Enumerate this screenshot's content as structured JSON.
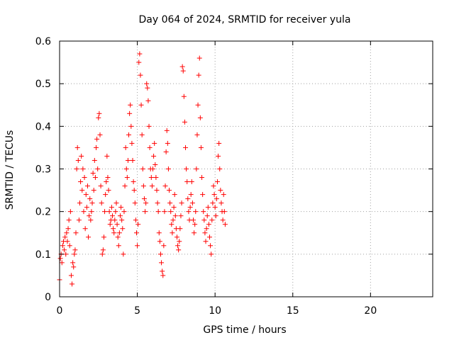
{
  "chart_data": {
    "type": "scatter",
    "title": "Day 064 of 2024, SRMTID for receiver yula",
    "xlabel": "GPS time / hours",
    "ylabel": "SRMTID / TECUs",
    "xlim": [
      0,
      24
    ],
    "ylim": [
      0,
      0.6
    ],
    "x_ticks": [
      0,
      5,
      10,
      15,
      20
    ],
    "y_ticks": [
      0,
      0.1,
      0.2,
      0.3,
      0.4,
      0.5,
      0.6
    ],
    "x_tick_labels": [
      "0",
      "5",
      "10",
      "15",
      "20"
    ],
    "y_tick_labels": [
      "0",
      "0.1",
      "0.2",
      "0.3",
      "0.4",
      "0.5",
      "0.6"
    ],
    "grid": true,
    "marker": "+",
    "color": "#ff0000",
    "series": [
      {
        "name": "SRMTID",
        "points": [
          [
            0.0,
            0.04
          ],
          [
            0.05,
            0.09
          ],
          [
            0.1,
            0.1
          ],
          [
            0.15,
            0.08
          ],
          [
            0.2,
            0.12
          ],
          [
            0.25,
            0.13
          ],
          [
            0.3,
            0.11
          ],
          [
            0.35,
            0.14
          ],
          [
            0.4,
            0.1
          ],
          [
            0.45,
            0.15
          ],
          [
            0.5,
            0.13
          ],
          [
            0.55,
            0.16
          ],
          [
            0.6,
            0.18
          ],
          [
            0.65,
            0.12
          ],
          [
            0.7,
            0.2
          ],
          [
            0.75,
            0.05
          ],
          [
            0.8,
            0.03
          ],
          [
            0.85,
            0.08
          ],
          [
            0.9,
            0.07
          ],
          [
            0.95,
            0.1
          ],
          [
            1.0,
            0.11
          ],
          [
            1.05,
            0.15
          ],
          [
            1.1,
            0.3
          ],
          [
            1.15,
            0.35
          ],
          [
            1.2,
            0.32
          ],
          [
            1.25,
            0.18
          ],
          [
            1.3,
            0.22
          ],
          [
            1.35,
            0.27
          ],
          [
            1.4,
            0.33
          ],
          [
            1.45,
            0.25
          ],
          [
            1.5,
            0.3
          ],
          [
            1.55,
            0.2
          ],
          [
            1.6,
            0.28
          ],
          [
            1.65,
            0.16
          ],
          [
            1.7,
            0.24
          ],
          [
            1.75,
            0.21
          ],
          [
            1.8,
            0.26
          ],
          [
            1.85,
            0.14
          ],
          [
            1.9,
            0.19
          ],
          [
            1.95,
            0.23
          ],
          [
            2.0,
            0.18
          ],
          [
            2.05,
            0.2
          ],
          [
            2.1,
            0.22
          ],
          [
            2.15,
            0.29
          ],
          [
            2.2,
            0.25
          ],
          [
            2.25,
            0.32
          ],
          [
            2.3,
            0.28
          ],
          [
            2.35,
            0.35
          ],
          [
            2.4,
            0.37
          ],
          [
            2.45,
            0.3
          ],
          [
            2.5,
            0.42
          ],
          [
            2.55,
            0.43
          ],
          [
            2.6,
            0.38
          ],
          [
            2.65,
            0.26
          ],
          [
            2.7,
            0.22
          ],
          [
            2.75,
            0.1
          ],
          [
            2.8,
            0.11
          ],
          [
            2.85,
            0.14
          ],
          [
            2.9,
            0.2
          ],
          [
            2.95,
            0.24
          ],
          [
            3.0,
            0.27
          ],
          [
            3.05,
            0.33
          ],
          [
            3.1,
            0.28
          ],
          [
            3.15,
            0.25
          ],
          [
            3.2,
            0.2
          ],
          [
            3.25,
            0.17
          ],
          [
            3.3,
            0.18
          ],
          [
            3.35,
            0.21
          ],
          [
            3.4,
            0.19
          ],
          [
            3.45,
            0.16
          ],
          [
            3.5,
            0.15
          ],
          [
            3.55,
            0.18
          ],
          [
            3.6,
            0.2
          ],
          [
            3.65,
            0.22
          ],
          [
            3.7,
            0.17
          ],
          [
            3.75,
            0.14
          ],
          [
            3.8,
            0.12
          ],
          [
            3.85,
            0.15
          ],
          [
            3.9,
            0.19
          ],
          [
            3.95,
            0.21
          ],
          [
            4.0,
            0.18
          ],
          [
            4.05,
            0.16
          ],
          [
            4.1,
            0.1
          ],
          [
            4.15,
            0.2
          ],
          [
            4.2,
            0.26
          ],
          [
            4.25,
            0.35
          ],
          [
            4.3,
            0.3
          ],
          [
            4.35,
            0.28
          ],
          [
            4.4,
            0.32
          ],
          [
            4.45,
            0.38
          ],
          [
            4.5,
            0.43
          ],
          [
            4.55,
            0.45
          ],
          [
            4.6,
            0.4
          ],
          [
            4.65,
            0.36
          ],
          [
            4.7,
            0.32
          ],
          [
            4.75,
            0.27
          ],
          [
            4.8,
            0.25
          ],
          [
            4.85,
            0.22
          ],
          [
            4.9,
            0.18
          ],
          [
            4.95,
            0.15
          ],
          [
            5.0,
            0.12
          ],
          [
            5.05,
            0.17
          ],
          [
            5.1,
            0.55
          ],
          [
            5.15,
            0.57
          ],
          [
            5.2,
            0.52
          ],
          [
            5.25,
            0.45
          ],
          [
            5.3,
            0.38
          ],
          [
            5.35,
            0.3
          ],
          [
            5.4,
            0.26
          ],
          [
            5.45,
            0.23
          ],
          [
            5.5,
            0.2
          ],
          [
            5.55,
            0.22
          ],
          [
            5.6,
            0.5
          ],
          [
            5.65,
            0.49
          ],
          [
            5.7,
            0.46
          ],
          [
            5.75,
            0.4
          ],
          [
            5.8,
            0.35
          ],
          [
            5.85,
            0.3
          ],
          [
            5.9,
            0.28
          ],
          [
            5.95,
            0.26
          ],
          [
            6.0,
            0.3
          ],
          [
            6.05,
            0.33
          ],
          [
            6.1,
            0.36
          ],
          [
            6.15,
            0.31
          ],
          [
            6.2,
            0.28
          ],
          [
            6.25,
            0.25
          ],
          [
            6.3,
            0.22
          ],
          [
            6.35,
            0.2
          ],
          [
            6.4,
            0.15
          ],
          [
            6.45,
            0.13
          ],
          [
            6.5,
            0.1
          ],
          [
            6.55,
            0.08
          ],
          [
            6.6,
            0.06
          ],
          [
            6.65,
            0.05
          ],
          [
            6.7,
            0.12
          ],
          [
            6.75,
            0.2
          ],
          [
            6.8,
            0.26
          ],
          [
            6.85,
            0.34
          ],
          [
            6.9,
            0.39
          ],
          [
            6.95,
            0.36
          ],
          [
            7.0,
            0.3
          ],
          [
            7.05,
            0.25
          ],
          [
            7.1,
            0.22
          ],
          [
            7.15,
            0.2
          ],
          [
            7.2,
            0.17
          ],
          [
            7.25,
            0.15
          ],
          [
            7.3,
            0.18
          ],
          [
            7.35,
            0.21
          ],
          [
            7.4,
            0.24
          ],
          [
            7.45,
            0.19
          ],
          [
            7.5,
            0.16
          ],
          [
            7.55,
            0.14
          ],
          [
            7.6,
            0.12
          ],
          [
            7.65,
            0.11
          ],
          [
            7.7,
            0.13
          ],
          [
            7.75,
            0.16
          ],
          [
            7.8,
            0.19
          ],
          [
            7.85,
            0.22
          ],
          [
            7.9,
            0.54
          ],
          [
            7.95,
            0.53
          ],
          [
            8.0,
            0.47
          ],
          [
            8.05,
            0.41
          ],
          [
            8.1,
            0.35
          ],
          [
            8.15,
            0.3
          ],
          [
            8.2,
            0.27
          ],
          [
            8.25,
            0.23
          ],
          [
            8.3,
            0.2
          ],
          [
            8.35,
            0.18
          ],
          [
            8.4,
            0.21
          ],
          [
            8.45,
            0.24
          ],
          [
            8.5,
            0.27
          ],
          [
            8.55,
            0.22
          ],
          [
            8.6,
            0.18
          ],
          [
            8.65,
            0.15
          ],
          [
            8.7,
            0.17
          ],
          [
            8.75,
            0.2
          ],
          [
            8.8,
            0.3
          ],
          [
            8.85,
            0.38
          ],
          [
            8.9,
            0.45
          ],
          [
            8.95,
            0.52
          ],
          [
            9.0,
            0.56
          ],
          [
            9.05,
            0.42
          ],
          [
            9.1,
            0.35
          ],
          [
            9.15,
            0.28
          ],
          [
            9.2,
            0.24
          ],
          [
            9.25,
            0.2
          ],
          [
            9.3,
            0.18
          ],
          [
            9.35,
            0.15
          ],
          [
            9.4,
            0.13
          ],
          [
            9.45,
            0.16
          ],
          [
            9.5,
            0.19
          ],
          [
            9.55,
            0.21
          ],
          [
            9.6,
            0.17
          ],
          [
            9.65,
            0.14
          ],
          [
            9.7,
            0.12
          ],
          [
            9.75,
            0.1
          ],
          [
            9.8,
            0.18
          ],
          [
            9.85,
            0.22
          ],
          [
            9.9,
            0.26
          ],
          [
            9.95,
            0.24
          ],
          [
            10.0,
            0.21
          ],
          [
            10.05,
            0.19
          ],
          [
            10.1,
            0.23
          ],
          [
            10.15,
            0.27
          ],
          [
            10.2,
            0.33
          ],
          [
            10.25,
            0.36
          ],
          [
            10.3,
            0.3
          ],
          [
            10.35,
            0.25
          ],
          [
            10.4,
            0.22
          ],
          [
            10.45,
            0.2
          ],
          [
            10.5,
            0.18
          ],
          [
            10.55,
            0.24
          ],
          [
            10.6,
            0.2
          ],
          [
            10.65,
            0.17
          ]
        ]
      }
    ]
  }
}
